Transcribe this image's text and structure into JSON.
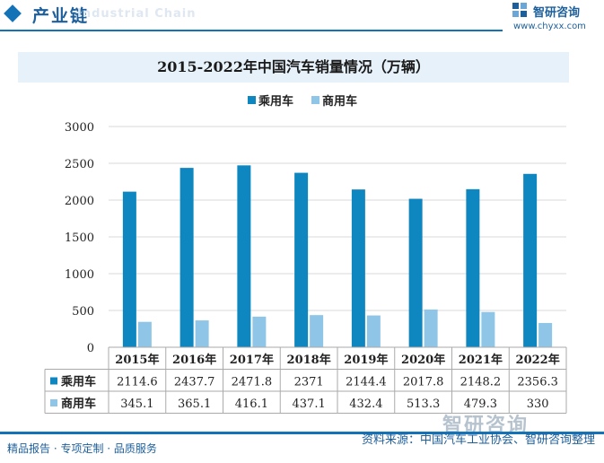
{
  "header": {
    "section_title": "产业链",
    "section_subtitle": "Industrial Chain",
    "brand_name": "智研咨询",
    "brand_url": "www.chyxx.com"
  },
  "colors": {
    "passenger": "#0e86c0",
    "commercial": "#8fc6e8",
    "accent": "#1473b7"
  },
  "chart_data": {
    "type": "bar",
    "title": "2015-2022年中国汽车销量情况（万辆）",
    "categories": [
      "2015年",
      "2016年",
      "2017年",
      "2018年",
      "2019年",
      "2020年",
      "2021年",
      "2022年"
    ],
    "series": [
      {
        "name": "乘用车",
        "values": [
          2114.6,
          2437.7,
          2471.8,
          2371,
          2144.4,
          2017.8,
          2148.2,
          2356.3
        ],
        "labels": [
          "2114.6",
          "2437.7",
          "2471.8",
          "2371",
          "2144.4",
          "2017.8",
          "2148.2",
          "2356.3"
        ]
      },
      {
        "name": "商用车",
        "values": [
          345.1,
          365.1,
          416.1,
          437.1,
          432.4,
          513.3,
          479.3,
          330
        ],
        "labels": [
          "345.1",
          "365.1",
          "416.1",
          "437.1",
          "432.4",
          "513.3",
          "479.3",
          "330"
        ]
      }
    ],
    "ylim": [
      0,
      3000
    ],
    "yticks": [
      "0",
      "500",
      "1000",
      "1500",
      "2000",
      "2500",
      "3000"
    ],
    "ytick_values": [
      0,
      500,
      1000,
      1500,
      2000,
      2500,
      3000
    ],
    "grid": true,
    "legend": "top-center",
    "data_table": true
  },
  "footer": {
    "left": "精品报告 · 专项定制 · 品质服务",
    "source": "资料来源：中国汽车工业协会、智研咨询整理",
    "watermark": "智研咨询"
  }
}
